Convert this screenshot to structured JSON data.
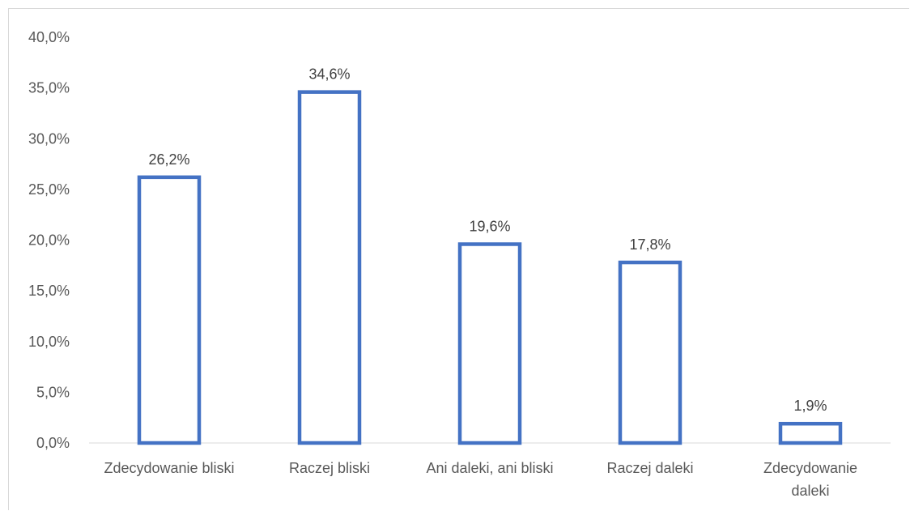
{
  "chart_data": {
    "type": "bar",
    "categories": [
      [
        "Zdecydowanie bliski"
      ],
      [
        "Raczej bliski"
      ],
      [
        "Ani daleki, ani bliski"
      ],
      [
        "Raczej daleki"
      ],
      [
        "Zdecydowanie",
        "daleki"
      ]
    ],
    "values": [
      26.2,
      34.6,
      19.6,
      17.8,
      1.9
    ],
    "data_labels": [
      "26,2%",
      "34,6%",
      "19,6%",
      "17,8%",
      "1,9%"
    ],
    "ylim": [
      0,
      40
    ],
    "yticks": [
      0,
      5,
      10,
      15,
      20,
      25,
      30,
      35,
      40
    ],
    "ytick_labels": [
      "0,0%",
      "5,0%",
      "10,0%",
      "15,0%",
      "20,0%",
      "25,0%",
      "30,0%",
      "35,0%",
      "40,0%"
    ],
    "title": "",
    "xlabel": "",
    "ylabel": "",
    "grid": false,
    "legend": "none",
    "bar_fill": "#ffffff",
    "bar_stroke": "#4472c4",
    "axis_color": "#d9d9d9"
  }
}
